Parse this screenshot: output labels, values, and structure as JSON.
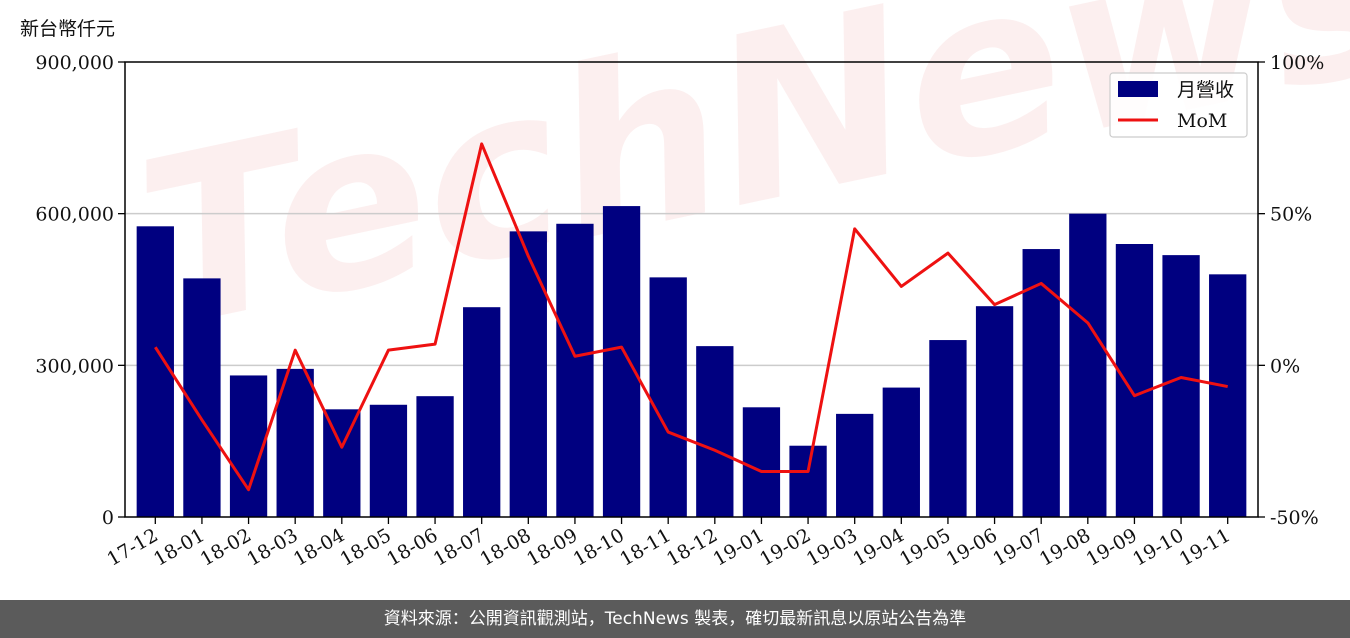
{
  "unit_label": "新台幣仟元",
  "watermark": "TechNews",
  "footer": "資料來源：公開資訊觀測站，TechNews 製表，確切最新訊息以原站公告為準",
  "colors": {
    "bar": "#000080",
    "line": "#ee1111",
    "grid": "#cccccc"
  },
  "chart_data": {
    "type": "bar",
    "title": "",
    "xlabel": "",
    "ylabel": "新台幣仟元",
    "categories": [
      "17-12",
      "18-01",
      "18-02",
      "18-03",
      "18-04",
      "18-05",
      "18-06",
      "18-07",
      "18-08",
      "18-09",
      "18-10",
      "18-11",
      "18-12",
      "19-01",
      "19-02",
      "19-03",
      "19-04",
      "19-05",
      "19-06",
      "19-07",
      "19-08",
      "19-09",
      "19-10",
      "19-11"
    ],
    "series": [
      {
        "name": "月營收",
        "type": "bar",
        "axis": "left",
        "values": [
          575000,
          472000,
          280000,
          293000,
          213000,
          222000,
          239000,
          415000,
          565000,
          580000,
          615000,
          474000,
          338000,
          217000,
          141000,
          204000,
          256000,
          350000,
          417000,
          530000,
          600000,
          540000,
          518000,
          480000
        ]
      },
      {
        "name": "MoM",
        "type": "line",
        "axis": "right",
        "values": [
          6,
          -18,
          -41,
          5,
          -27,
          5,
          7,
          73,
          36,
          3,
          6,
          -22,
          -28,
          -35,
          -35,
          45,
          26,
          37,
          20,
          27,
          14,
          -10,
          -4,
          -7
        ]
      }
    ],
    "y_left": {
      "min": 0,
      "max": 900000,
      "ticks": [
        0,
        300000,
        600000,
        900000
      ],
      "tick_labels": [
        "0",
        "300,000",
        "600,000",
        "900,000"
      ]
    },
    "y_right": {
      "min": -50,
      "max": 100,
      "ticks": [
        -50,
        0,
        50,
        100
      ],
      "tick_labels": [
        "-50%",
        "0%",
        "50%",
        "100%"
      ]
    },
    "grid": true,
    "legend": "top-right"
  }
}
